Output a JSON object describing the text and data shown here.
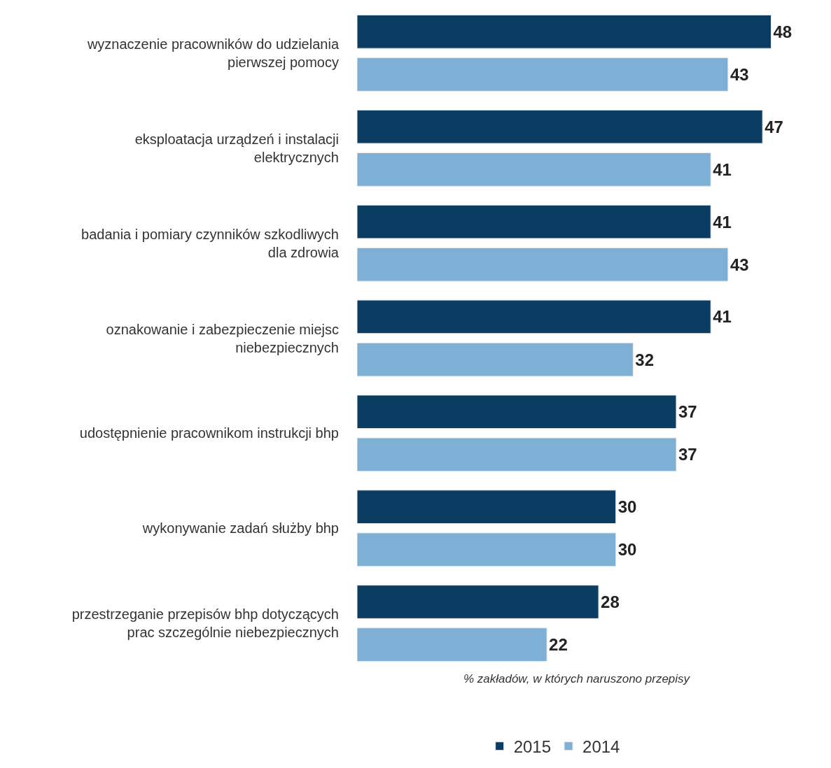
{
  "chart_data": {
    "type": "bar",
    "orientation": "horizontal",
    "data_labels": true,
    "legend": "bottom",
    "xlabel": "% zakładów, w których naruszono przepisy",
    "categories": [
      "wyznaczenie pracowników do udzielania pierwszej pomocy",
      "eksploatacja urządzeń i instalacji elektrycznych",
      "badania i pomiary czynników szkodliwych dla zdrowia",
      "oznakowanie i zabezpieczenie miejsc niebezpiecznych",
      "udostępnienie pracownikom instrukcji bhp",
      "wykonywanie zadań służby bhp",
      "przestrzeganie przepisów bhp dotyczących prac szczególnie niebezpiecznych"
    ],
    "series": [
      {
        "name": "2015",
        "color": "#0b3c61",
        "values": [
          48,
          47,
          41,
          41,
          37,
          30,
          28
        ]
      },
      {
        "name": "2014",
        "color": "#7eb0d5",
        "values": [
          43,
          41,
          43,
          32,
          37,
          30,
          22
        ]
      }
    ]
  }
}
